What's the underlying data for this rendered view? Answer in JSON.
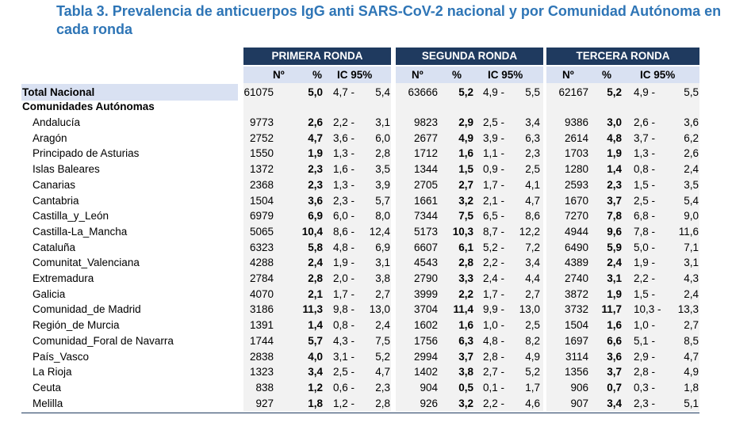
{
  "title": "Tabla 3. Prevalencia de anticuerpos IgG anti SARS-CoV-2 nacional y por Comunidad Autónoma en cada ronda",
  "rounds": [
    "PRIMERA RONDA",
    "SEGUNDA RONDA",
    "TERCERA  RONDA"
  ],
  "subheaders": {
    "n": "Nº",
    "pct": "%",
    "ic": "IC 95%"
  },
  "total": {
    "label": "Total Nacional",
    "values": [
      [
        "61075",
        "5,0",
        "4,7 -",
        "5,4"
      ],
      [
        "63666",
        "5,2",
        "4,9 -",
        "5,5"
      ],
      [
        "62167",
        "5,2",
        "4,9 -",
        "5,5"
      ]
    ]
  },
  "section_label": "Comunidades Autónomas",
  "rows": [
    {
      "label": "Andalucía",
      "values": [
        [
          "9773",
          "2,6",
          "2,2 -",
          "3,1"
        ],
        [
          "9823",
          "2,9",
          "2,5 -",
          "3,4"
        ],
        [
          "9386",
          "3,0",
          "2,6 -",
          "3,6"
        ]
      ]
    },
    {
      "label": "Aragón",
      "values": [
        [
          "2752",
          "4,7",
          "3,6 -",
          "6,0"
        ],
        [
          "2677",
          "4,9",
          "3,9 -",
          "6,3"
        ],
        [
          "2614",
          "4,8",
          "3,7 -",
          "6,2"
        ]
      ]
    },
    {
      "label": "Principado de Asturias",
      "values": [
        [
          "1550",
          "1,9",
          "1,3 -",
          "2,8"
        ],
        [
          "1712",
          "1,6",
          "1,1 -",
          "2,3"
        ],
        [
          "1703",
          "1,9",
          "1,3 -",
          "2,6"
        ]
      ]
    },
    {
      "label": "Islas Baleares",
      "values": [
        [
          "1372",
          "2,3",
          "1,6 -",
          "3,5"
        ],
        [
          "1344",
          "1,5",
          "0,9 -",
          "2,5"
        ],
        [
          "1280",
          "1,4",
          "0,8 -",
          "2,4"
        ]
      ]
    },
    {
      "label": "Canarias",
      "values": [
        [
          "2368",
          "2,3",
          "1,3 -",
          "3,9"
        ],
        [
          "2705",
          "2,7",
          "1,7 -",
          "4,1"
        ],
        [
          "2593",
          "2,3",
          "1,5 -",
          "3,5"
        ]
      ]
    },
    {
      "label": "Cantabria",
      "values": [
        [
          "1504",
          "3,6",
          "2,3 -",
          "5,7"
        ],
        [
          "1661",
          "3,2",
          "2,1 -",
          "4,7"
        ],
        [
          "1670",
          "3,7",
          "2,5 -",
          "5,4"
        ]
      ]
    },
    {
      "label": "Castilla_y_León",
      "values": [
        [
          "6979",
          "6,9",
          "6,0 -",
          "8,0"
        ],
        [
          "7344",
          "7,5",
          "6,5 -",
          "8,6"
        ],
        [
          "7270",
          "7,8",
          "6,8 -",
          "9,0"
        ]
      ]
    },
    {
      "label": "Castilla-La_Mancha",
      "values": [
        [
          "5065",
          "10,4",
          "8,6 -",
          "12,4"
        ],
        [
          "5173",
          "10,3",
          "8,7 -",
          "12,2"
        ],
        [
          "4944",
          "9,6",
          "7,8 -",
          "11,6"
        ]
      ]
    },
    {
      "label": "Cataluña",
      "values": [
        [
          "6323",
          "5,8",
          "4,8 -",
          "6,9"
        ],
        [
          "6607",
          "6,1",
          "5,2 -",
          "7,2"
        ],
        [
          "6490",
          "5,9",
          "5,0 -",
          "7,1"
        ]
      ]
    },
    {
      "label": "Comunitat_Valenciana",
      "values": [
        [
          "4288",
          "2,4",
          "1,9 -",
          "3,1"
        ],
        [
          "4543",
          "2,8",
          "2,2 -",
          "3,4"
        ],
        [
          "4389",
          "2,4",
          "1,9 -",
          "3,1"
        ]
      ]
    },
    {
      "label": "Extremadura",
      "values": [
        [
          "2784",
          "2,8",
          "2,0 -",
          "3,8"
        ],
        [
          "2790",
          "3,3",
          "2,4 -",
          "4,4"
        ],
        [
          "2740",
          "3,1",
          "2,2 -",
          "4,3"
        ]
      ]
    },
    {
      "label": "Galicia",
      "values": [
        [
          "4070",
          "2,1",
          "1,7 -",
          "2,7"
        ],
        [
          "3999",
          "2,2",
          "1,7 -",
          "2,7"
        ],
        [
          "3872",
          "1,9",
          "1,5 -",
          "2,4"
        ]
      ]
    },
    {
      "label": "Comunidad_de Madrid",
      "values": [
        [
          "3186",
          "11,3",
          "9,8 -",
          "13,0"
        ],
        [
          "3704",
          "11,4",
          "9,9 -",
          "13,0"
        ],
        [
          "3732",
          "11,7",
          "10,3 -",
          "13,3"
        ]
      ]
    },
    {
      "label": "Región_de Murcia",
      "values": [
        [
          "1391",
          "1,4",
          "0,8 -",
          "2,4"
        ],
        [
          "1602",
          "1,6",
          "1,0 -",
          "2,5"
        ],
        [
          "1504",
          "1,6",
          "1,0 -",
          "2,7"
        ]
      ]
    },
    {
      "label": "Comunidad_Foral de Navarra",
      "values": [
        [
          "1744",
          "5,7",
          "4,3 -",
          "7,5"
        ],
        [
          "1756",
          "6,3",
          "4,8 -",
          "8,2"
        ],
        [
          "1697",
          "6,6",
          "5,1 -",
          "8,5"
        ]
      ]
    },
    {
      "label": "País_Vasco",
      "values": [
        [
          "2838",
          "4,0",
          "3,1 -",
          "5,2"
        ],
        [
          "2994",
          "3,7",
          "2,8 -",
          "4,9"
        ],
        [
          "3114",
          "3,6",
          "2,9 -",
          "4,7"
        ]
      ]
    },
    {
      "label": "La Rioja",
      "values": [
        [
          "1323",
          "3,4",
          "2,5 -",
          "4,7"
        ],
        [
          "1402",
          "3,8",
          "2,7 -",
          "5,2"
        ],
        [
          "1356",
          "3,7",
          "2,8 -",
          "4,9"
        ]
      ]
    },
    {
      "label": "Ceuta",
      "values": [
        [
          "838",
          "1,2",
          "0,6 -",
          "2,3"
        ],
        [
          "904",
          "0,5",
          "0,1 -",
          "1,7"
        ],
        [
          "906",
          "0,7",
          "0,3 -",
          "1,8"
        ]
      ]
    },
    {
      "label": "Melilla",
      "values": [
        [
          "927",
          "1,8",
          "1,2 -",
          "2,8"
        ],
        [
          "926",
          "3,2",
          "2,2 -",
          "4,6"
        ],
        [
          "907",
          "3,4",
          "2,3 -",
          "5,1"
        ]
      ]
    }
  ]
}
